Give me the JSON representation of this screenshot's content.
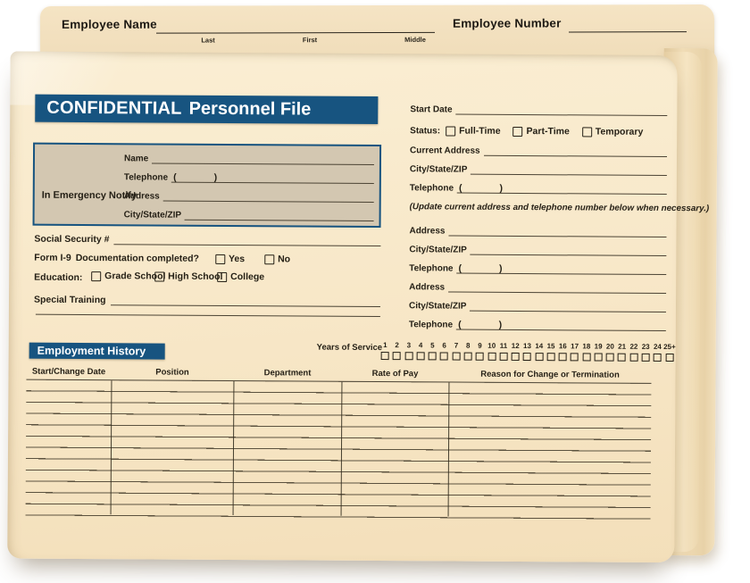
{
  "colors": {
    "accent_blue": "#175480",
    "manila": "#f8e8c9",
    "emergency_box_fill": "#d3c7b1",
    "print_ink": "#241f15"
  },
  "glyphs": {
    "paren_open": "(",
    "paren_close": ")"
  },
  "tab": {
    "employee_name_label": "Employee Name",
    "name_sublabels": [
      "Last",
      "First",
      "Middle"
    ],
    "employee_number_label": "Employee Number"
  },
  "title_bar": {
    "confidential": "CONFIDENTIAL",
    "personnel_file": "Personnel File"
  },
  "emergency": {
    "label": "In Emergency Notify",
    "name_label": "Name",
    "telephone_label": "Telephone",
    "address_label": "Address",
    "city_state_zip_label": "City/State/ZIP"
  },
  "left_form": {
    "social_security_label": "Social Security #",
    "form_i9_label": "Form I-9",
    "documentation_label": "Documentation completed?",
    "yes_label": "Yes",
    "no_label": "No",
    "education_label": "Education:",
    "education_options": [
      "Grade School",
      "High School",
      "College"
    ],
    "special_training_label": "Special Training"
  },
  "right_form": {
    "start_date_label": "Start Date",
    "status_label": "Status:",
    "status_options": [
      "Full-Time",
      "Part-Time",
      "Temporary"
    ],
    "current_address_label": "Current Address",
    "city_state_zip_label": "City/State/ZIP",
    "telephone_label": "Telephone",
    "update_note": "(Update current address and telephone number below when necessary.)",
    "address_label": "Address"
  },
  "employment": {
    "header": "Employment History",
    "years_of_service_label": "Years of Service",
    "years": [
      "1",
      "2",
      "3",
      "4",
      "5",
      "6",
      "7",
      "8",
      "9",
      "10",
      "11",
      "12",
      "13",
      "14",
      "15",
      "16",
      "17",
      "18",
      "19",
      "20",
      "21",
      "22",
      "23",
      "24",
      "25+"
    ],
    "table_headers": [
      "Start/Change Date",
      "Position",
      "Department",
      "Rate of Pay",
      "Reason for Change or Termination"
    ],
    "table_row_count": 12
  }
}
